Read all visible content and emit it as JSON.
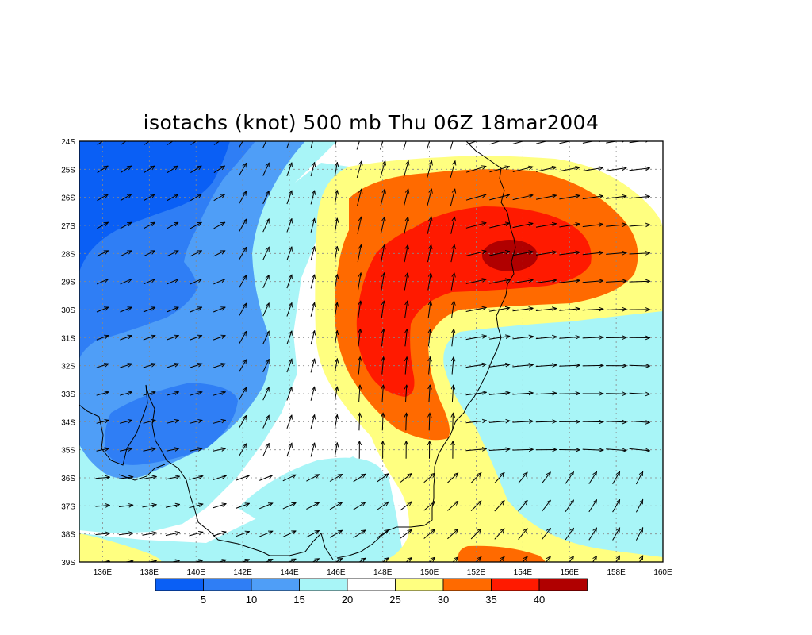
{
  "title": "isotachs (knot) 500 mb Thu 06Z 18mar2004",
  "map": {
    "lon_range": [
      135,
      160
    ],
    "lat_range": [
      -39,
      -24
    ],
    "lon_ticks": [
      "136E",
      "138E",
      "140E",
      "142E",
      "144E",
      "146E",
      "148E",
      "150E",
      "152E",
      "154E",
      "156E",
      "158E",
      "160E"
    ],
    "lat_ticks": [
      "24S",
      "25S",
      "26S",
      "27S",
      "28S",
      "29S",
      "30S",
      "31S",
      "32S",
      "33S",
      "34S",
      "35S",
      "36S",
      "37S",
      "38S",
      "39S"
    ]
  },
  "colorbar": {
    "labels": [
      "5",
      "10",
      "15",
      "20",
      "25",
      "30",
      "35",
      "40"
    ],
    "colors": [
      "#0a5ff5",
      "#2f7ef5",
      "#4f9ef7",
      "#a8f5f7",
      "#ffffff",
      "#ffff80",
      "#ff6a00",
      "#ff1a00",
      "#b00000"
    ]
  },
  "fill_colors": {
    "lt5": "#0a5ff5",
    "c5_10": "#2f7ef5",
    "c10_15": "#4f9ef7",
    "c15_20": "#a8f5f7",
    "c20_25": "#ffffff",
    "c25_30": "#ffff80",
    "c30_35": "#ff6a00",
    "c35_40": "#ff1a00",
    "gt40": "#b00000"
  }
}
